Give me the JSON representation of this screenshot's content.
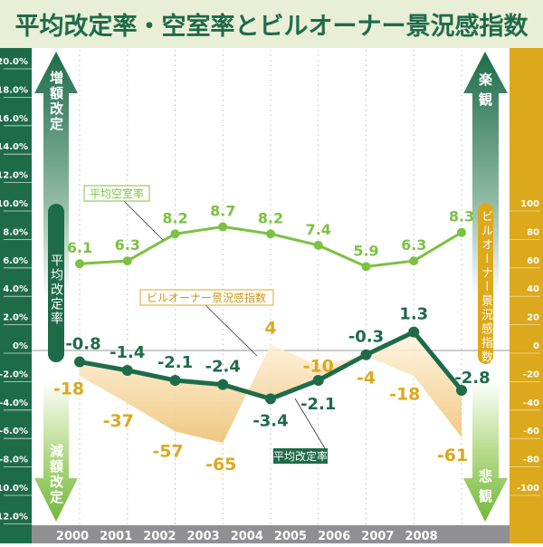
{
  "title": "平均改定率・空室率とビルオーナー景況感指数",
  "colors": {
    "header_bg": "#e8efd6",
    "title": "#1e6b4a",
    "rate": "#1e6b4a",
    "vacancy": "#7cc142",
    "index": "#dca81c",
    "year_bar": "#8f8f94"
  },
  "labels": {
    "left_up_arrow": "増額改定",
    "left_down_arrow": "減額改定",
    "left_axis_pill": "平均改定率",
    "right_up_arrow": "楽観",
    "right_down_arrow": "悲観",
    "right_axis_pill": "ビルオーナー景況感指数",
    "callout_vacancy": "平均空室率",
    "callout_index": "ビルオーナー景況感指数",
    "callout_rate": "平均改定率"
  },
  "chart_data": {
    "type": "line",
    "categories": [
      "2000",
      "2001",
      "2002",
      "2003",
      "2004",
      "2005",
      "2006",
      "2007",
      "2008"
    ],
    "left_axis": {
      "ylim": [
        -12,
        20
      ],
      "ticks": [
        "20.0%",
        "18.0%",
        "16.0%",
        "14.0%",
        "12.0%",
        "10.0%",
        "8.0%",
        "6.0%",
        "4.0%",
        "2.0%",
        "0%",
        "-2.0%",
        "-4.0%",
        "-6.0%",
        "-8.0%",
        "-10.0%",
        "-12.0%"
      ],
      "tick_values": [
        20,
        18,
        16,
        14,
        12,
        10,
        8,
        6,
        4,
        2,
        0,
        -2,
        -4,
        -6,
        -8,
        -10,
        -12
      ]
    },
    "right_axis": {
      "ylim": [
        -100,
        100
      ],
      "ticks": [
        "100",
        "80",
        "60",
        "40",
        "20",
        "0",
        "-20",
        "-40",
        "-60",
        "-80",
        "-100"
      ],
      "tick_values": [
        100,
        80,
        60,
        40,
        20,
        0,
        -20,
        -40,
        -60,
        -80,
        -100
      ]
    },
    "series": [
      {
        "name": "平均空室率",
        "axis": "left",
        "x": [
          "2000",
          "2001",
          "2002",
          "2003",
          "2004",
          "2005",
          "2006",
          "2007",
          "2008"
        ],
        "values": [
          6.1,
          6.3,
          8.2,
          8.7,
          8.2,
          7.4,
          5.9,
          6.3,
          8.3
        ],
        "labels": [
          "6.1",
          "6.3",
          "8.2",
          "8.7",
          "8.2",
          "7.4",
          "5.9",
          "6.3",
          "8.3"
        ]
      },
      {
        "name": "平均改定率",
        "axis": "left",
        "x": [
          "2000",
          "2001",
          "2002",
          "2003",
          "2004",
          "2005",
          "2006",
          "2007",
          "2008"
        ],
        "values": [
          -0.8,
          -1.4,
          -2.1,
          -2.4,
          -3.4,
          -2.1,
          -0.3,
          1.3,
          -2.8
        ],
        "labels": [
          "-0.8",
          "-1.4",
          "-2.1",
          "-2.4",
          "-3.4",
          "-2.1",
          "-0.3",
          "1.3",
          "-2.8"
        ]
      },
      {
        "name": "ビルオーナー景況感指数",
        "axis": "right",
        "style": "area",
        "x": [
          "2000",
          "2001",
          "2002",
          "2003",
          "2004",
          "2005",
          "2006",
          "2007",
          "2008"
        ],
        "values": [
          -18,
          -37,
          -57,
          -65,
          4,
          -10,
          -4,
          -18,
          -61
        ],
        "labels": [
          "-18",
          "-37",
          "-57",
          "-65",
          "4",
          "-10",
          "-4",
          "-18",
          "-61"
        ]
      }
    ],
    "grid": "vertical dotted"
  }
}
